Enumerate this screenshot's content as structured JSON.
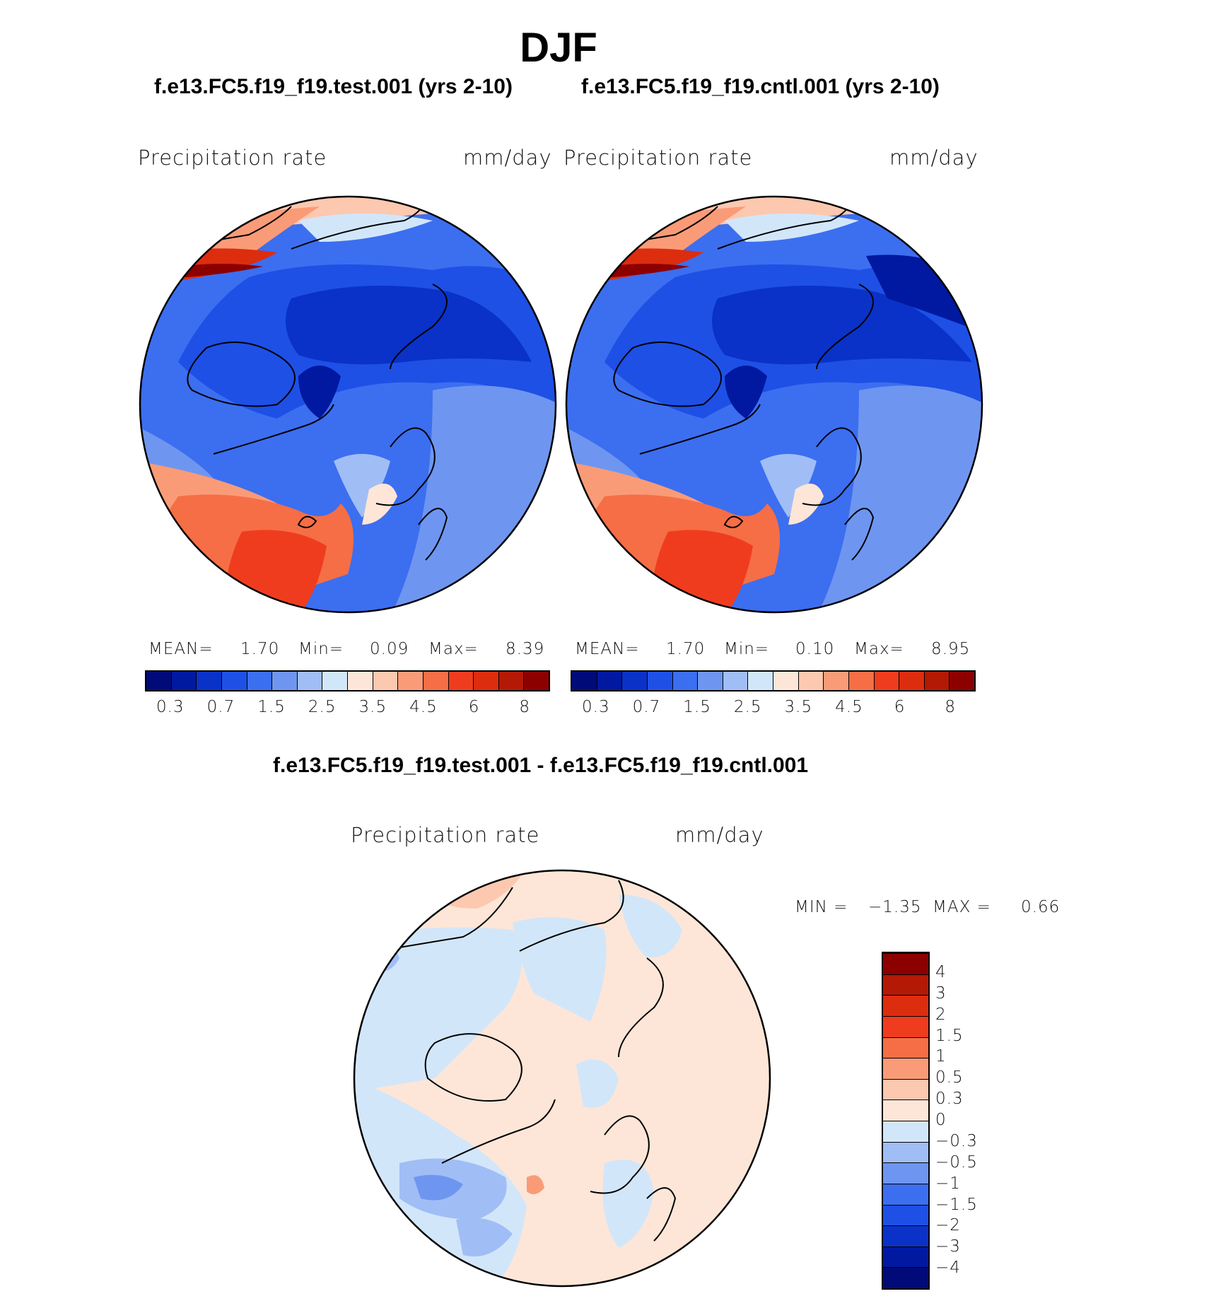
{
  "figure_title": "DJF",
  "panels": [
    {
      "title": "f.e13.FC5.f19_f19.test.001 (yrs 2-10)",
      "field": "Precipitation  rate",
      "units": "mm/day",
      "mean_label": "MEAN=",
      "mean": "1.70",
      "min_label": "Min=",
      "min": "0.09",
      "max_label": "Max=",
      "max": "8.39"
    },
    {
      "title": "f.e13.FC5.f19_f19.cntl.001 (yrs 2-10)",
      "field": "Precipitation  rate",
      "units": "mm/day",
      "mean_label": "MEAN=",
      "mean": "1.70",
      "min_label": "Min=",
      "min": "0.10",
      "max_label": "Max=",
      "max": "8.95"
    }
  ],
  "diff": {
    "title": "f.e13.FC5.f19_f19.test.001 - f.e13.FC5.f19_f19.cntl.001",
    "field": "Precipitation  rate",
    "units": "mm/day",
    "min_label": "MIN =",
    "min": "−1.35",
    "max_label": "MAX =",
    "max": "0.66"
  },
  "chart_data": [
    {
      "type": "heatmap",
      "projection": "north-polar-stereographic",
      "title": "f.e13.FC5.f19_f19.test.001 (yrs 2-10)",
      "variable": "Precipitation  rate",
      "units": "mm/day",
      "stats": {
        "mean": 1.7,
        "min": 0.09,
        "max": 8.39
      },
      "levels": [
        0.2,
        0.3,
        0.5,
        0.7,
        1,
        1.5,
        2,
        2.5,
        3,
        3.5,
        4,
        4.5,
        5,
        6,
        7,
        8
      ],
      "tick_labels": [
        "0.3",
        "0.7",
        "1.5",
        "2.5",
        "3.5",
        "4.5",
        "6",
        "8"
      ],
      "colors": [
        "#000a78",
        "#0019a0",
        "#0a32c8",
        "#1e50e6",
        "#3c6ef0",
        "#6e96f0",
        "#a0bef5",
        "#d2e6fa",
        "#fde6d7",
        "#fcc8af",
        "#fa9b78",
        "#f56e46",
        "#f03c1e",
        "#dc2d0f",
        "#b41905",
        "#8c0000"
      ]
    },
    {
      "type": "heatmap",
      "projection": "north-polar-stereographic",
      "title": "f.e13.FC5.f19_f19.cntl.001 (yrs 2-10)",
      "variable": "Precipitation  rate",
      "units": "mm/day",
      "stats": {
        "mean": 1.7,
        "min": 0.1,
        "max": 8.95
      },
      "levels": [
        0.2,
        0.3,
        0.5,
        0.7,
        1,
        1.5,
        2,
        2.5,
        3,
        3.5,
        4,
        4.5,
        5,
        6,
        7,
        8
      ],
      "tick_labels": [
        "0.3",
        "0.7",
        "1.5",
        "2.5",
        "3.5",
        "4.5",
        "6",
        "8"
      ],
      "colors": [
        "#000a78",
        "#0019a0",
        "#0a32c8",
        "#1e50e6",
        "#3c6ef0",
        "#6e96f0",
        "#a0bef5",
        "#d2e6fa",
        "#fde6d7",
        "#fcc8af",
        "#fa9b78",
        "#f56e46",
        "#f03c1e",
        "#dc2d0f",
        "#b41905",
        "#8c0000"
      ]
    },
    {
      "type": "heatmap",
      "projection": "north-polar-stereographic",
      "title": "f.e13.FC5.f19_f19.test.001 - f.e13.FC5.f19_f19.cntl.001",
      "variable": "Precipitation  rate",
      "units": "mm/day",
      "stats": {
        "min": -1.35,
        "max": 0.66
      },
      "tick_labels": [
        "−4",
        "−3",
        "−2",
        "−1.5",
        "−1",
        "−0.5",
        "−0.3",
        "0",
        "0.3",
        "0.5",
        "1",
        "1.5",
        "2",
        "3",
        "4"
      ],
      "colors": [
        "#000a78",
        "#0019a0",
        "#0a32c8",
        "#1e50e6",
        "#3c6ef0",
        "#6e96f0",
        "#a0bef5",
        "#d2e6fa",
        "#fde6d7",
        "#fcc8af",
        "#fa9b78",
        "#f56e46",
        "#f03c1e",
        "#dc2d0f",
        "#b41905",
        "#8c0000"
      ]
    }
  ]
}
